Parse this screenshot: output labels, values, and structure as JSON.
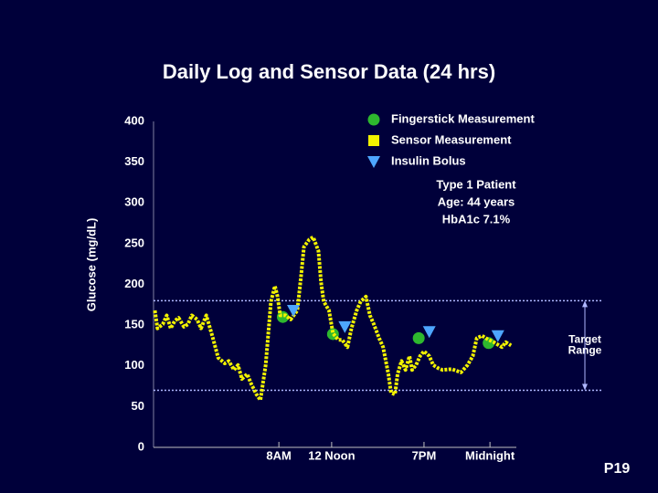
{
  "chart_data": {
    "type": "line",
    "title": "Daily Log and Sensor Data (24 hrs)",
    "y_label": "Glucose (mg/dL)",
    "xlim": [
      -1.5,
      26
    ],
    "ylim": [
      0,
      400
    ],
    "yticks": [
      0,
      50,
      100,
      150,
      200,
      250,
      300,
      350,
      400
    ],
    "xticks": [
      {
        "value": 8,
        "label": "8AM"
      },
      {
        "value": 12,
        "label": "12 Noon"
      },
      {
        "value": 19,
        "label": "7PM"
      },
      {
        "value": 24,
        "label": "Midnight"
      }
    ],
    "series": [
      {
        "name": "Fingerstick Measurement",
        "color": "#2eb82e",
        "marker": "circle",
        "x": [
          8.3,
          12.1,
          18.6,
          23.9
        ],
        "values": [
          160,
          139,
          134,
          128
        ]
      },
      {
        "name": "Sensor Measurement",
        "color": "#f2f200",
        "marker": "square",
        "line": true,
        "x": [
          -1.4,
          -1.2,
          -0.8,
          -0.5,
          -0.2,
          0.1,
          0.4,
          0.8,
          1.1,
          1.4,
          1.8,
          2.1,
          2.5,
          3.0,
          3.4,
          3.9,
          4.2,
          4.6,
          4.9,
          5.2,
          5.6,
          5.9,
          6.3,
          6.6,
          7.0,
          7.2,
          7.4,
          7.7,
          7.9,
          8.1,
          8.5,
          8.9,
          9.4,
          9.7,
          9.9,
          10.3,
          10.6,
          11.0,
          11.2,
          11.4,
          11.8,
          12.1,
          12.5,
          12.8,
          13.2,
          13.5,
          13.9,
          14.2,
          14.6,
          14.9,
          15.2,
          15.6,
          15.9,
          16.3,
          16.5,
          16.8,
          17.0,
          17.3,
          17.6,
          17.9,
          18.1,
          18.4,
          18.7,
          19.0,
          19.4,
          19.7,
          20.1,
          20.4,
          21.1,
          21.8,
          22.3,
          22.7,
          23.0,
          23.4,
          23.9,
          24.3,
          24.9,
          25.2,
          25.6
        ],
        "values": [
          168,
          146,
          151,
          162,
          146,
          155,
          159,
          148,
          151,
          162,
          157,
          146,
          162,
          134,
          110,
          103,
          106,
          95,
          101,
          84,
          90,
          78,
          65,
          58,
          101,
          140,
          179,
          198,
          185,
          162,
          162,
          157,
          168,
          213,
          246,
          255,
          258,
          241,
          202,
          179,
          168,
          140,
          132,
          132,
          123,
          146,
          168,
          179,
          185,
          162,
          151,
          134,
          123,
          90,
          67,
          65,
          90,
          106,
          95,
          112,
          95,
          101,
          112,
          118,
          112,
          101,
          97,
          95,
          96,
          92,
          101,
          112,
          134,
          137,
          132,
          129,
          123,
          129,
          125
        ]
      },
      {
        "name": "Insulin Bolus",
        "color": "#4da6ff",
        "marker": "triangle-down",
        "x": [
          9.1,
          13.0,
          19.4,
          24.6
        ],
        "values": [
          168,
          148,
          142,
          137
        ]
      }
    ],
    "annotation": [
      "Type 1 Patient",
      "Age: 44 years",
      "HbA1c 7.1%"
    ],
    "target_range": {
      "label": [
        "Target",
        "Range"
      ],
      "values": [
        70,
        180
      ]
    }
  },
  "page_number": "P19"
}
